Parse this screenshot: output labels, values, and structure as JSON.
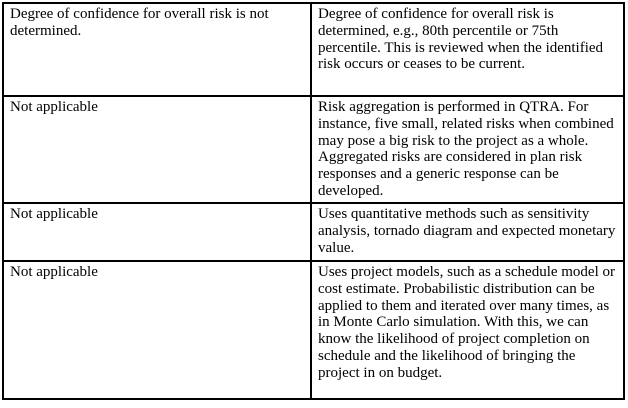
{
  "colors": {
    "border": "#000000",
    "text": "#000000",
    "background": "#ffffff"
  },
  "table": {
    "rows": [
      {
        "left": "Degree of confidence for overall risk is not determined.",
        "right": "Degree of confidence for overall risk is determined, e.g., 80th percentile or 75th percentile. This is reviewed when the identified risk occurs or ceases to be current."
      },
      {
        "left": "Not applicable",
        "right": "Risk aggregation is performed in QTRA. For instance, five small, related risks when combined may pose a big risk to the project as a whole. Aggregated risks are considered in plan risk responses and a generic response can be developed."
      },
      {
        "left": "Not applicable",
        "right": "Uses quantitative methods such as sensitivity analysis, tornado diagram and expected monetary value."
      },
      {
        "left": "Not applicable",
        "right": "Uses project models, such as a schedule model or cost estimate. Probabilistic distribution can be applied to them and iterated over many times, as in Monte Carlo simulation. With this, we can know the likelihood of project completion on schedule and the likelihood of bringing the project in on budget."
      }
    ]
  }
}
